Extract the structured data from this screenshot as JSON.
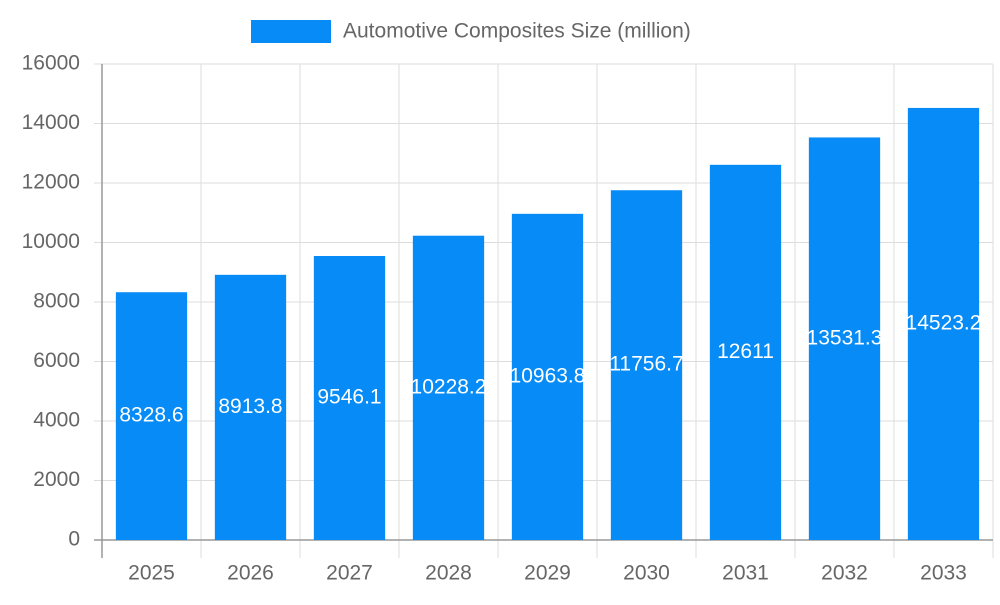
{
  "chart_data": {
    "type": "bar",
    "categories": [
      "2025",
      "2026",
      "2027",
      "2028",
      "2029",
      "2030",
      "2031",
      "2032",
      "2033"
    ],
    "series": [
      {
        "name": "Automotive Composites Size (million)",
        "color": "#068bf7",
        "values": [
          8328.6,
          8913.8,
          9546.1,
          10228.2,
          10963.8,
          11756.7,
          12611,
          13531.3,
          14523.2
        ]
      }
    ],
    "ylim": [
      0,
      16000
    ],
    "yticks": [
      0,
      2000,
      4000,
      6000,
      8000,
      10000,
      12000,
      14000,
      16000
    ],
    "grid": true,
    "legend": "top"
  }
}
